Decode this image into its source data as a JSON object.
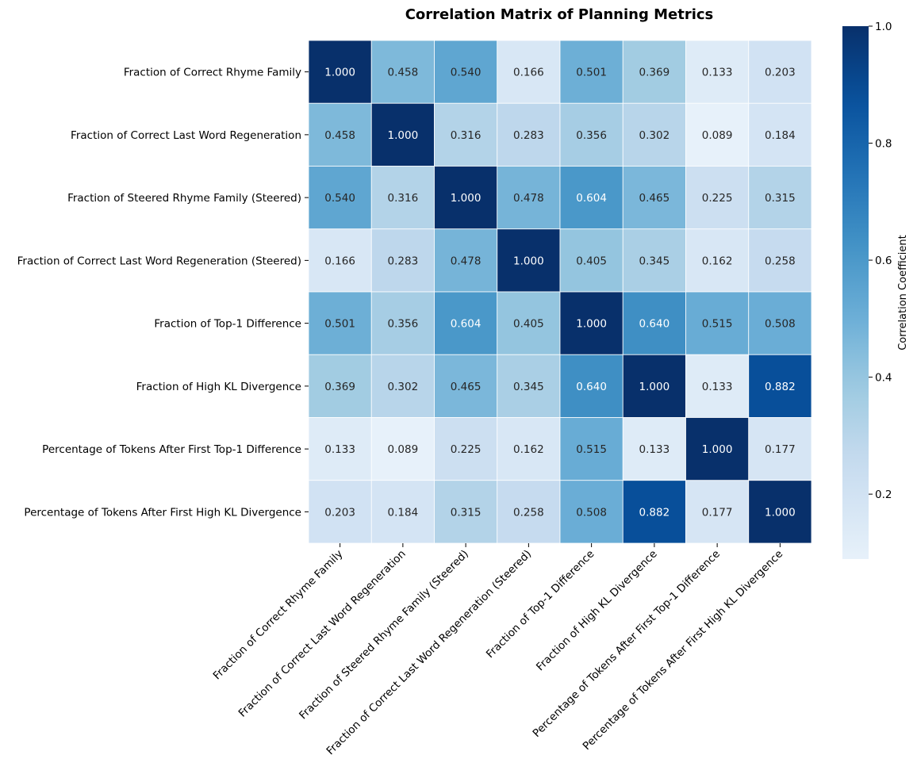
{
  "chart_data": {
    "type": "heatmap",
    "title": "Correlation Matrix of Planning Metrics",
    "xlabel": "",
    "ylabel": "",
    "row_labels": [
      "Fraction of Correct Rhyme Family",
      "Fraction of Correct Last Word Regeneration",
      "Fraction of Steered Rhyme Family (Steered)",
      "Fraction of Correct Last Word Regeneration (Steered)",
      "Fraction of Top-1 Difference",
      "Fraction of High KL Divergence",
      "Percentage of Tokens After First Top-1 Difference",
      "Percentage of Tokens After First High KL Divergence"
    ],
    "col_labels": [
      "Fraction of Correct Rhyme Family",
      "Fraction of Correct Last Word Regeneration",
      "Fraction of Steered Rhyme Family (Steered)",
      "Fraction of Correct Last Word Regeneration (Steered)",
      "Fraction of Top-1 Difference",
      "Fraction of High KL Divergence",
      "Percentage of Tokens After First Top-1 Difference",
      "Percentage of Tokens After First High KL Divergence"
    ],
    "values": [
      [
        1.0,
        0.458,
        0.54,
        0.166,
        0.501,
        0.369,
        0.133,
        0.203
      ],
      [
        0.458,
        1.0,
        0.316,
        0.283,
        0.356,
        0.302,
        0.089,
        0.184
      ],
      [
        0.54,
        0.316,
        1.0,
        0.478,
        0.604,
        0.465,
        0.225,
        0.315
      ],
      [
        0.166,
        0.283,
        0.478,
        1.0,
        0.405,
        0.345,
        0.162,
        0.258
      ],
      [
        0.501,
        0.356,
        0.604,
        0.405,
        1.0,
        0.64,
        0.515,
        0.508
      ],
      [
        0.369,
        0.302,
        0.465,
        0.345,
        0.64,
        1.0,
        0.133,
        0.882
      ],
      [
        0.133,
        0.089,
        0.225,
        0.162,
        0.515,
        0.133,
        1.0,
        0.177
      ],
      [
        0.203,
        0.184,
        0.315,
        0.258,
        0.508,
        0.882,
        0.177,
        1.0
      ]
    ],
    "colorbar": {
      "label": "Correlation Coefficient",
      "range": [
        0.089,
        1.0
      ],
      "ticks": [
        0.2,
        0.4,
        0.6,
        0.8,
        1.0
      ],
      "tick_labels": [
        "0.2",
        "0.4",
        "0.6",
        "0.8",
        "1.0"
      ],
      "colormap": "Blues",
      "low_color": "#e7eff7",
      "high_color": "#08306b"
    }
  }
}
